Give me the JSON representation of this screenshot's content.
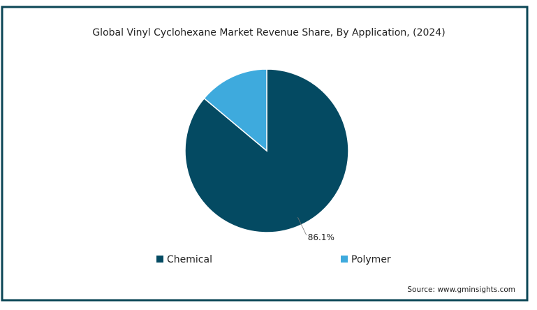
{
  "chart_data": {
    "type": "pie",
    "title": "Global Vinyl Cyclohexane Market Revenue Share, By Application, (2024)",
    "categories": [
      "Chemical",
      "Polymer"
    ],
    "values": [
      86.1,
      13.9
    ],
    "value_labels": [
      "86.1%",
      null
    ],
    "colors": [
      "#044a62",
      "#3eaadd"
    ],
    "source": "Source: www.gminsights.com"
  }
}
